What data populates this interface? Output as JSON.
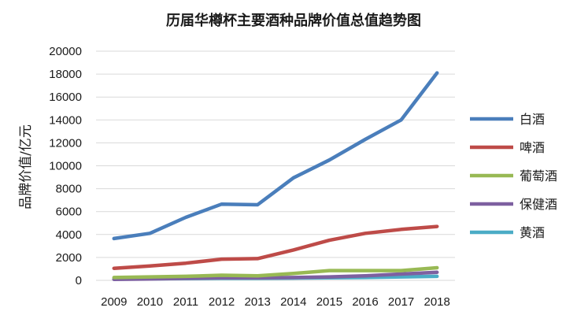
{
  "chart_data": {
    "type": "line",
    "title": "历届华樽杯主要酒种品牌价值总值趋势图",
    "xlabel": "",
    "ylabel": "品牌价值/亿元",
    "categories": [
      "2009",
      "2010",
      "2011",
      "2012",
      "2013",
      "2014",
      "2015",
      "2016",
      "2017",
      "2018"
    ],
    "ylim": [
      0,
      20000
    ],
    "yticks": [
      0,
      2000,
      4000,
      6000,
      8000,
      10000,
      12000,
      14000,
      16000,
      18000,
      20000
    ],
    "grid": true,
    "legend_position": "right",
    "series": [
      {
        "name": "白酒",
        "color": "#4a7ebb",
        "values": [
          3650,
          4100,
          5500,
          6650,
          6600,
          8950,
          10500,
          12300,
          14000,
          18100
        ]
      },
      {
        "name": "啤酒",
        "color": "#be4b48",
        "values": [
          1050,
          1250,
          1500,
          1850,
          1900,
          2650,
          3500,
          4100,
          4450,
          4700
        ]
      },
      {
        "name": "葡萄酒",
        "color": "#98b954",
        "values": [
          250,
          300,
          350,
          450,
          400,
          600,
          850,
          850,
          850,
          1100
        ]
      },
      {
        "name": "保健酒",
        "color": "#7d60a0",
        "values": [
          80,
          120,
          180,
          220,
          220,
          250,
          300,
          400,
          550,
          700
        ]
      },
      {
        "name": "黄酒",
        "color": "#4bacc6",
        "values": [
          120,
          140,
          160,
          180,
          180,
          200,
          220,
          250,
          300,
          350
        ]
      }
    ]
  }
}
